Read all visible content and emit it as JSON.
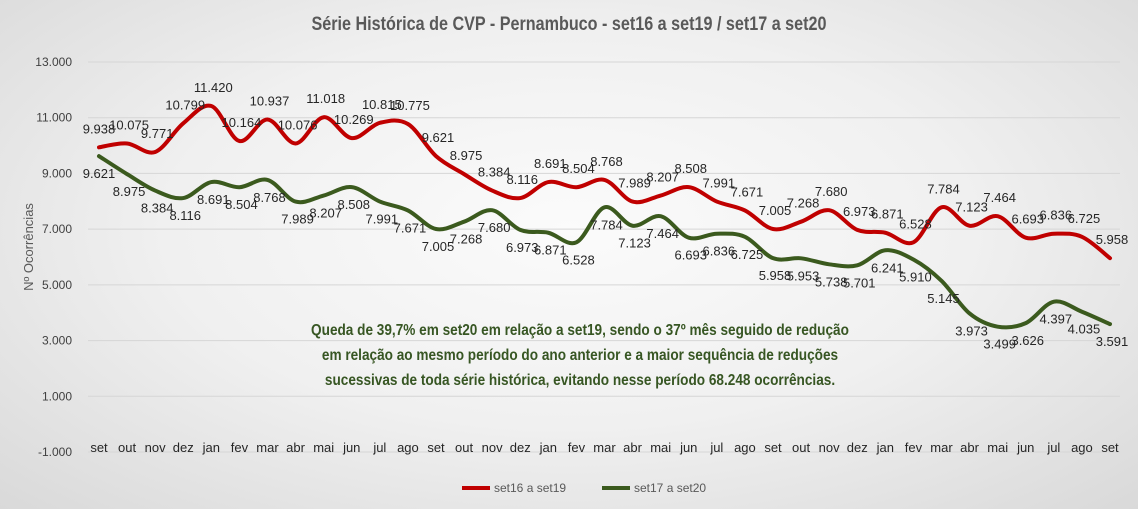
{
  "chart_data": {
    "type": "line",
    "title": "Série Histórica de CVP - Pernambuco - set16 a set19 /  set17 a set20",
    "ylabel": "Nº Ocorrências",
    "xlabel": "",
    "ylim": [
      -1000,
      13000
    ],
    "yticks": [
      -1000,
      1000,
      3000,
      5000,
      7000,
      9000,
      11000,
      13000
    ],
    "ytick_labels": [
      "-1.000",
      "1.000",
      "3.000",
      "5.000",
      "7.000",
      "9.000",
      "11.000",
      "13.000"
    ],
    "grid": true,
    "legend_position": "bottom",
    "categories": [
      "set",
      "out",
      "nov",
      "dez",
      "jan",
      "fev",
      "mar",
      "abr",
      "mai",
      "jun",
      "jul",
      "ago",
      "set",
      "out",
      "nov",
      "dez",
      "jan",
      "fev",
      "mar",
      "abr",
      "mai",
      "jun",
      "jul",
      "ago",
      "set",
      "out",
      "nov",
      "dez",
      "jan",
      "fev",
      "mar",
      "abr",
      "mai",
      "jun",
      "jul",
      "ago",
      "set"
    ],
    "series": [
      {
        "name": "set16 a set19",
        "color": "#c00000",
        "values": [
          9938,
          10075,
          9771,
          10799,
          11420,
          10164,
          10937,
          10076,
          11018,
          10269,
          10815,
          10775,
          9621,
          8975,
          8384,
          8116,
          8691,
          8504,
          8768,
          7989,
          8207,
          8508,
          7991,
          7671,
          7005,
          7268,
          7680,
          6973,
          6871,
          6528,
          7784,
          7123,
          7464,
          6693,
          6836,
          6725,
          5958
        ],
        "labels": [
          "9.938",
          "10.075",
          "9.771",
          "10.799",
          "11.420",
          "10.164",
          "10.937",
          "10.076",
          "11.018",
          "10.269",
          "10.815",
          "10.775",
          "9.621",
          "8.975",
          "8.384",
          "8.116",
          "8.691",
          "8.504",
          "8.768",
          "7.989",
          "8.207",
          "8.508",
          "7.991",
          "7.671",
          "7.005",
          "7.268",
          "7.680",
          "6.973",
          "6.871",
          "6.528",
          "7.784",
          "7.123",
          "7.464",
          "6.693",
          "6.836",
          "6.725",
          "5.958"
        ]
      },
      {
        "name": "set17 a set20",
        "color": "#3b5a1e",
        "values": [
          9621,
          8975,
          8384,
          8116,
          8691,
          8504,
          8768,
          7989,
          8207,
          8508,
          7991,
          7671,
          7005,
          7268,
          7680,
          6973,
          6871,
          6528,
          7784,
          7123,
          7464,
          6693,
          6836,
          6725,
          5958,
          5953,
          5738,
          5701,
          6241,
          5910,
          5145,
          3973,
          3499,
          3626,
          4397,
          4035,
          3591
        ],
        "labels": [
          "9.621",
          "8.975",
          "8.384",
          "8.116",
          "8.691",
          "8.504",
          "8.768",
          "7.989",
          "8.207",
          "8.508",
          "7.991",
          "7.671",
          "7.005",
          "7.268",
          "7.680",
          "6.973",
          "6.871",
          "6.528",
          "7.784",
          "7.123",
          "7.464",
          "6.693",
          "6.836",
          "6.725",
          "5.958",
          "5.953",
          "5.738",
          "5.701",
          "6.241",
          "5.910",
          "5.145",
          "3.973",
          "3.499",
          "3.626",
          "4.397",
          "4.035",
          "3.591"
        ]
      }
    ],
    "annotation": "Queda de 39,7% em set20 em relação a set19, sendo o 37º mês seguido de redução em relação ao mesmo período do ano anterior e a maior sequência de reduções sucessivas de toda série histórica, evitando nesse período 68.248 ocorrências."
  }
}
